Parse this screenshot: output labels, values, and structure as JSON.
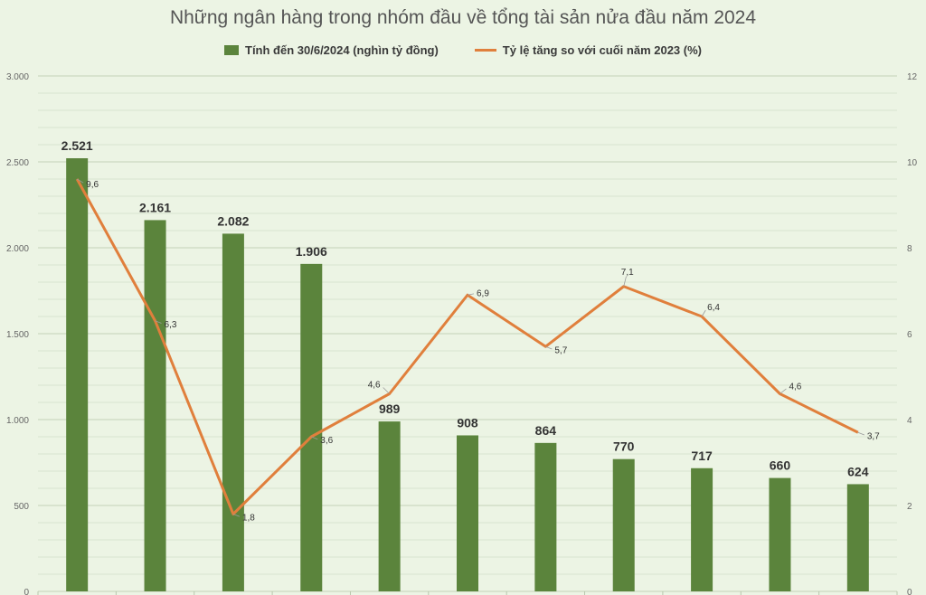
{
  "chart_data": {
    "type": "bar",
    "title": "Những ngân hàng trong nhóm đầu về tổng tài sản nửa đầu năm 2024",
    "categories": [
      "",
      "",
      "",
      "",
      "",
      "",
      "",
      "",
      "",
      "",
      ""
    ],
    "series": [
      {
        "name": "Tính đến 30/6/2024 (nghìn tỷ đồng)",
        "type": "bar",
        "axis": "left",
        "values": [
          2521,
          2161,
          2082,
          1906,
          989,
          908,
          864,
          770,
          717,
          660,
          624
        ],
        "labels": [
          "2.521",
          "2.161",
          "2.082",
          "1.906",
          "989",
          "908",
          "864",
          "770",
          "717",
          "660",
          "624"
        ]
      },
      {
        "name": "Tỷ lệ tăng so với cuối năm 2023 (%)",
        "type": "line",
        "axis": "right",
        "values": [
          9.6,
          6.3,
          1.8,
          3.6,
          4.6,
          6.9,
          5.7,
          7.1,
          6.4,
          4.6,
          3.7
        ],
        "labels": [
          "9,6",
          "6,3",
          "1,8",
          "3,6",
          "4,6",
          "6,9",
          "5,7",
          "7,1",
          "6,4",
          "4,6",
          "3,7"
        ]
      }
    ],
    "y_left": {
      "range": [
        0,
        3000
      ],
      "ticks": [
        0,
        500,
        1000,
        1500,
        2000,
        2500,
        3000
      ],
      "tick_labels": [
        "0",
        "500",
        "1.000",
        "1.500",
        "2.000",
        "2.500",
        "3.000"
      ]
    },
    "y_right": {
      "range": [
        0,
        12
      ],
      "ticks": [
        0,
        2,
        4,
        6,
        8,
        10,
        12
      ],
      "tick_labels": [
        "0",
        "2",
        "4",
        "6",
        "8",
        "10",
        "12"
      ]
    },
    "grid": true,
    "legend_position": "top",
    "colors": {
      "bar": "#5b843c",
      "line": "#e07f3c",
      "grid": "#c9d6bf",
      "background": "#ecf4e4"
    }
  }
}
